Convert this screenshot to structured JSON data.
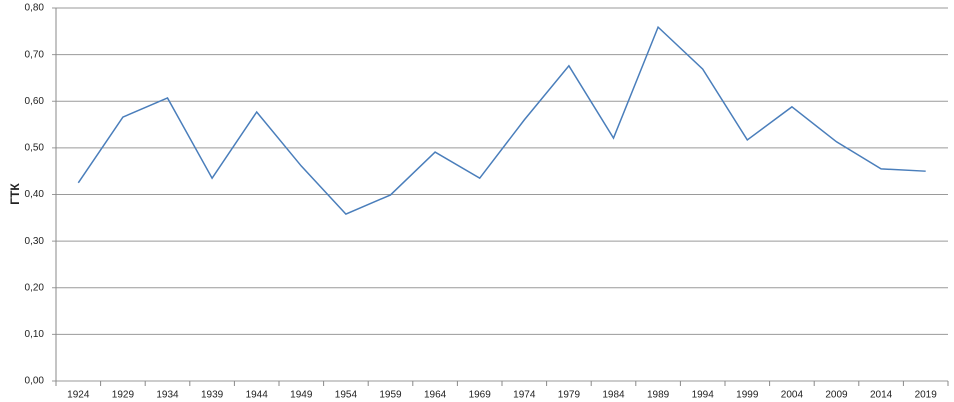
{
  "chart_data": {
    "type": "line",
    "y_label": "ГТК",
    "categories": [
      "1924",
      "1929",
      "1934",
      "1939",
      "1944",
      "1949",
      "1954",
      "1959",
      "1964",
      "1969",
      "1974",
      "1979",
      "1984",
      "1989",
      "1994",
      "1999",
      "2004",
      "2009",
      "2014",
      "2019"
    ],
    "values": [
      0.425,
      0.566,
      0.607,
      0.435,
      0.577,
      0.461,
      0.358,
      0.399,
      0.491,
      0.435,
      0.56,
      0.676,
      0.521,
      0.759,
      0.669,
      0.517,
      0.588,
      0.513,
      0.455,
      0.45
    ],
    "color": "#4a7ebb",
    "ylim": [
      0,
      0.8
    ],
    "yticks": [
      {
        "value": 0,
        "label": "0,00"
      },
      {
        "value": 0.1,
        "label": "0,10"
      },
      {
        "value": 0.2,
        "label": "0,20"
      },
      {
        "value": 0.3,
        "label": "0,30"
      },
      {
        "value": 0.4,
        "label": "0,40"
      },
      {
        "value": 0.5,
        "label": "0,50"
      },
      {
        "value": 0.6,
        "label": "0,60"
      },
      {
        "value": 0.7,
        "label": "0,70"
      },
      {
        "value": 0.8,
        "label": "0,80"
      }
    ],
    "grid": true
  }
}
